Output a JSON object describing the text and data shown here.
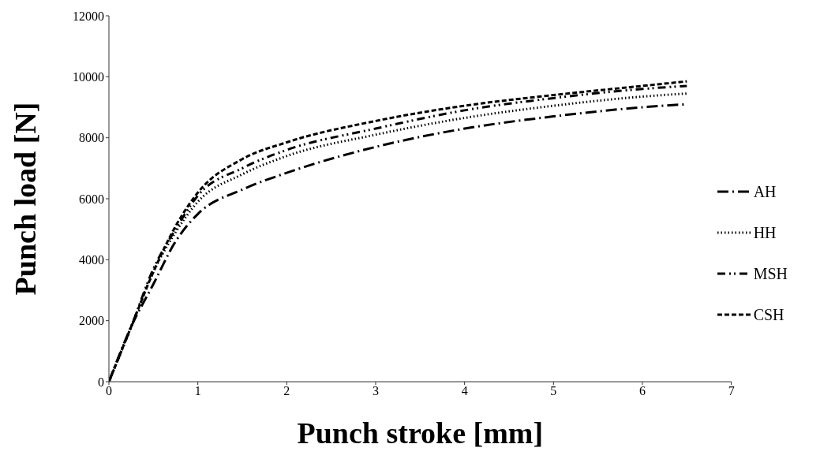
{
  "chart_data": {
    "type": "line",
    "xlabel": "Punch stroke [mm]",
    "ylabel": "Punch load [N]",
    "x": [
      0,
      0.25,
      0.5,
      0.75,
      1,
      1.5,
      2,
      3,
      4,
      5,
      6,
      6.5
    ],
    "series": [
      {
        "name": "AH",
        "color": "#000000",
        "line_style": "dashed",
        "values": [
          0,
          1800,
          3200,
          4600,
          5500,
          6300,
          6850,
          7700,
          8300,
          8700,
          9000,
          9100
        ]
      },
      {
        "name": "HH",
        "color": "#000000",
        "line_style": "dotted",
        "values": [
          0,
          1800,
          3600,
          4900,
          5900,
          6800,
          7400,
          8100,
          8650,
          9050,
          9350,
          9450
        ]
      },
      {
        "name": "MSH",
        "color": "#000000",
        "line_style": "dashed",
        "values": [
          0,
          1800,
          3700,
          5000,
          6100,
          7000,
          7600,
          8300,
          8900,
          9300,
          9600,
          9700
        ]
      },
      {
        "name": "CSH",
        "color": "#000000",
        "line_style": "dashed",
        "values": [
          0,
          1800,
          3600,
          5100,
          6200,
          7300,
          7850,
          8550,
          9050,
          9400,
          9700,
          9850
        ]
      }
    ],
    "xlim": [
      0,
      7
    ],
    "xticks": [
      0,
      1,
      2,
      3,
      4,
      5,
      6,
      7
    ],
    "ylim": [
      0,
      12000
    ],
    "yticks": [
      0,
      2000,
      4000,
      6000,
      8000,
      10000,
      12000
    ],
    "grid": false,
    "legend": "right",
    "marker": "none"
  }
}
